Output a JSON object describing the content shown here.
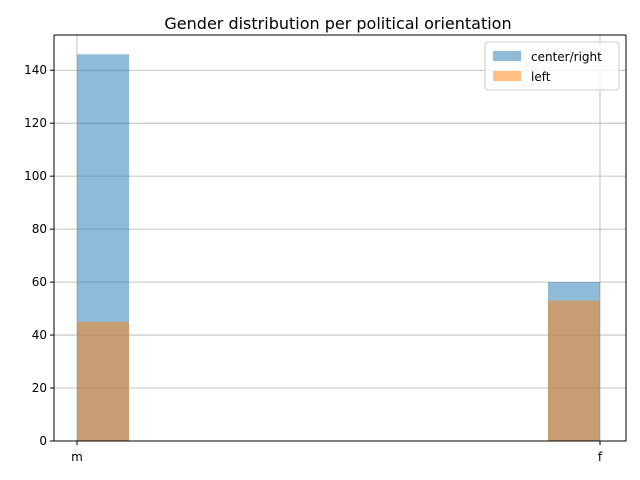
{
  "chart_data": {
    "type": "bar",
    "title": "Gender distribution per political orientation",
    "xlabel": "",
    "ylabel": "",
    "categories": [
      "m",
      "f"
    ],
    "series": [
      {
        "name": "center/right",
        "values": [
          146,
          60
        ],
        "color": "#1f77b4",
        "opacity": 0.5
      },
      {
        "name": "left",
        "values": [
          45,
          53
        ],
        "color": "#ff7f0e",
        "opacity": 0.5
      }
    ],
    "ylim": [
      0,
      153.3
    ],
    "yticks": [
      0,
      20,
      40,
      60,
      80,
      100,
      120,
      140
    ],
    "grid": true,
    "legend_position": "top-right"
  }
}
